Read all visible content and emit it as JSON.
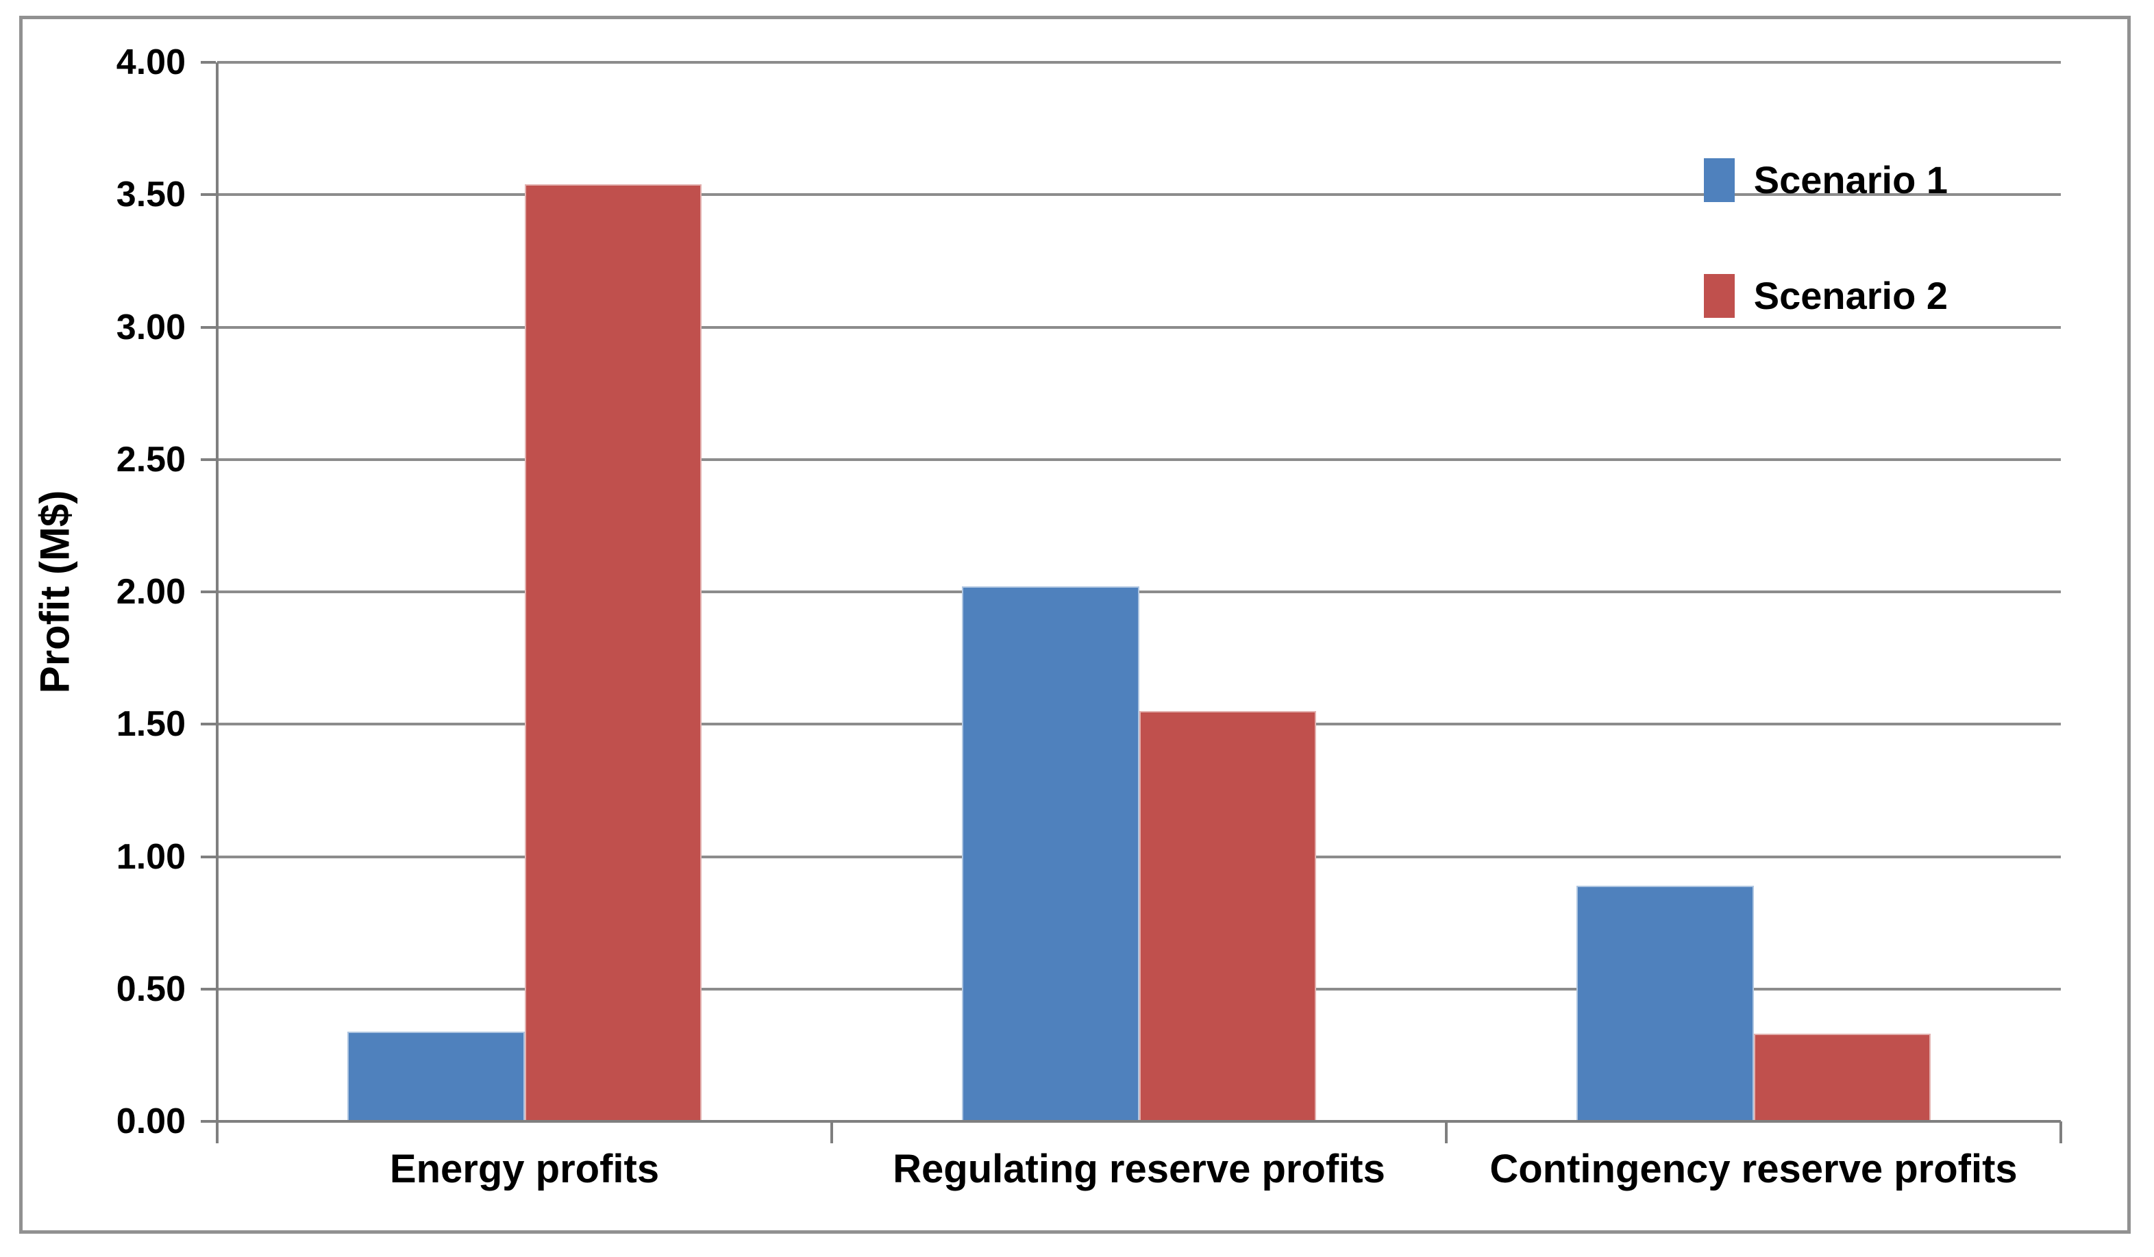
{
  "chart_data": {
    "type": "bar",
    "title": "",
    "xlabel": "",
    "ylabel": "Profit (M$)",
    "categories": [
      "Energy profits",
      "Regulating reserve profits",
      "Contingency reserve profits"
    ],
    "series": [
      {
        "name": "Scenario 1",
        "color": "#4F81BD",
        "values": [
          0.34,
          2.02,
          0.89
        ]
      },
      {
        "name": "Scenario 2",
        "color": "#C0504D",
        "values": [
          3.54,
          1.55,
          0.33
        ]
      }
    ],
    "ylim": [
      0,
      4
    ],
    "yticks": [
      {
        "value": 0.0,
        "label": "0.00"
      },
      {
        "value": 0.5,
        "label": "0.50"
      },
      {
        "value": 1.0,
        "label": "1.00"
      },
      {
        "value": 1.5,
        "label": "1.50"
      },
      {
        "value": 2.0,
        "label": "2.00"
      },
      {
        "value": 2.5,
        "label": "2.50"
      },
      {
        "value": 3.0,
        "label": "3.00"
      },
      {
        "value": 3.5,
        "label": "3.50"
      },
      {
        "value": 4.0,
        "label": "4.00"
      }
    ],
    "grid": true,
    "legend_position": "top-right"
  },
  "style": {
    "background": "#FFFFFF",
    "gridline_color": "#8C8C8C",
    "axis_color": "#7F7F7F",
    "frame_color": "#919191",
    "text_color": "#000000"
  }
}
